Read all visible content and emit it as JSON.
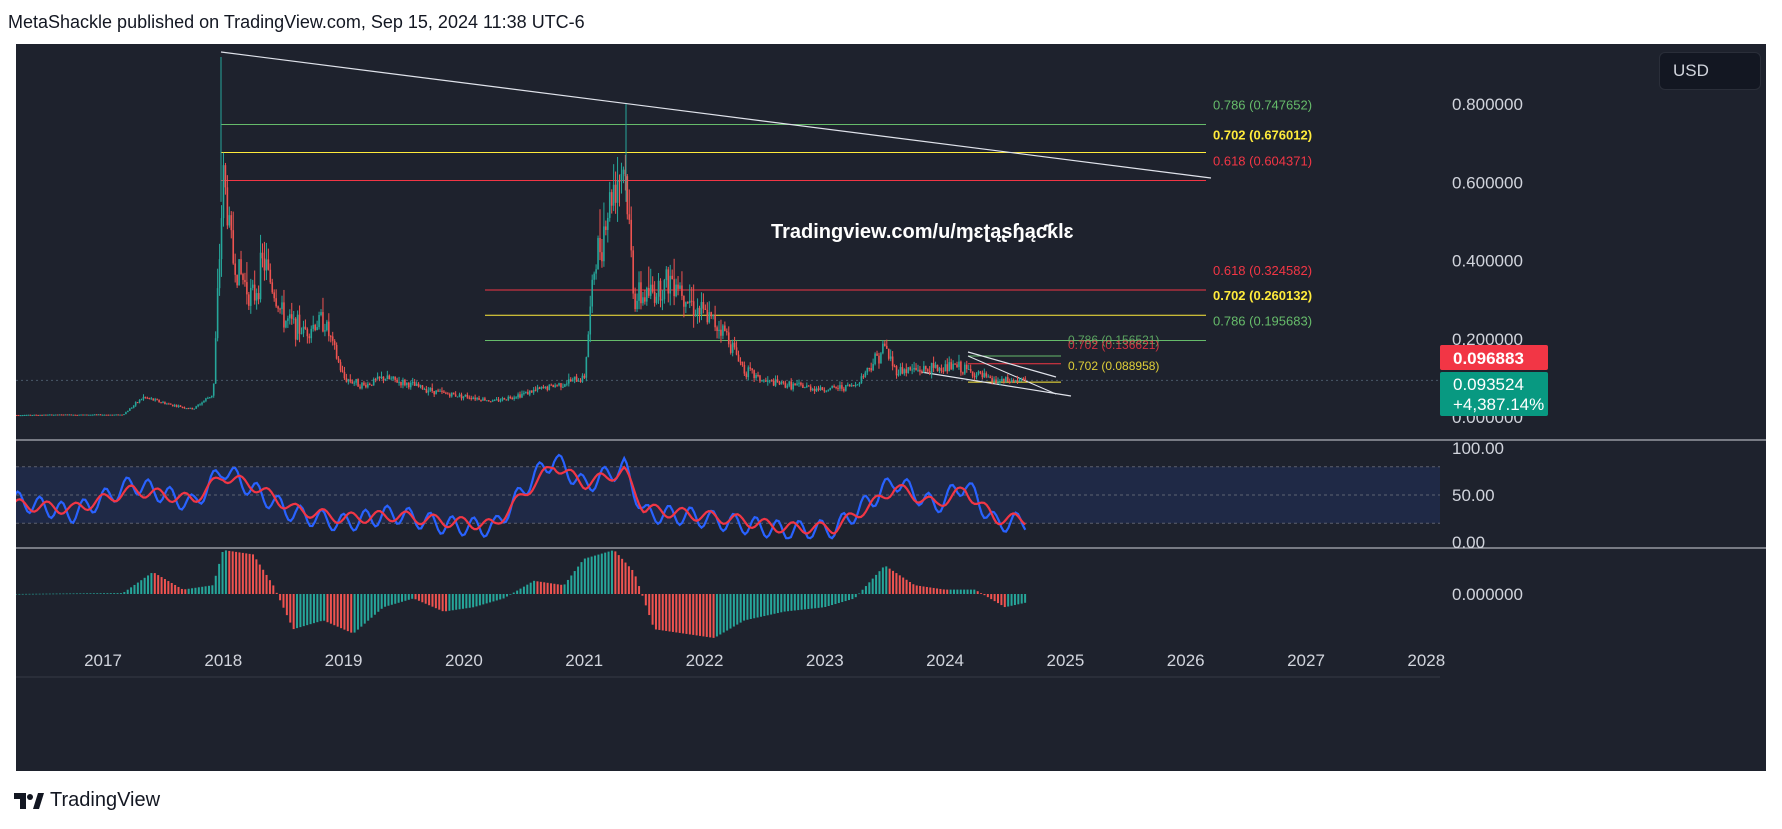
{
  "header": {
    "text": "MetaShackle published on TradingView.com, Sep 15, 2024 11:38 UTC-6"
  },
  "footer": {
    "brand": "TradingView",
    "logo_icon": "tradingview-logo-icon"
  },
  "chart": {
    "currency_label": "USD",
    "watermark": "Tradingview.com/u/ɱɛʈąʂɧąƈƙlɛ"
  },
  "colors": {
    "background": "#1e222d",
    "up": "#26a69a",
    "down": "#ef5350",
    "rsi": "#2962ff",
    "rsi_ma": "#f23645",
    "fib_green": "#66bb6a",
    "fib_yellow": "#ffeb3b",
    "fib_red": "#f23645"
  },
  "chart_data": [
    {
      "type": "candlestick",
      "title": "",
      "x_ticks": [
        "2017",
        "2018",
        "2019",
        "2020",
        "2021",
        "2022",
        "2023",
        "2024",
        "2025",
        "2026",
        "2027",
        "2028"
      ],
      "y_ticks": [
        "0.800000",
        "0.600000",
        "0.400000",
        "0.200000",
        "0.000000"
      ],
      "ylim": [
        -0.02,
        0.95
      ],
      "price_tags": [
        {
          "value": "0.096883",
          "color": "#f23645"
        },
        {
          "value": "0.093524",
          "change": "+4,387.14%",
          "color": "#089981"
        }
      ],
      "fib_levels_upper": [
        {
          "ratio": "0.786",
          "value": "0.747652",
          "label": "0.786 (0.747652)",
          "color": "#66bb6a"
        },
        {
          "ratio": "0.702",
          "value": "0.676012",
          "label": "0.702 (0.676012)",
          "color": "#ffeb3b"
        },
        {
          "ratio": "0.618",
          "value": "0.604371",
          "label": "0.618 (0.604371)",
          "color": "#f23645"
        }
      ],
      "fib_levels_middle": [
        {
          "ratio": "0.618",
          "value": "0.324582",
          "label": "0.618 (0.324582)",
          "color": "#f23645"
        },
        {
          "ratio": "0.702",
          "value": "0.260132",
          "label": "0.702 (0.260132)",
          "color": "#ffeb3b"
        },
        {
          "ratio": "0.786",
          "value": "0.195683",
          "label": "0.786 (0.195683)",
          "color": "#66bb6a"
        }
      ],
      "fib_levels_lower": [
        {
          "label": "0.786 (0.156521)",
          "color": "#66bb6a"
        },
        {
          "label": "0.702 (0.136621)",
          "color": "#f23645"
        },
        {
          "label": "0.702 (0.088958)",
          "color": "#ffeb3b"
        }
      ],
      "series": [
        {
          "name": "",
          "points": [
            [
              "2016-04",
              0.005
            ],
            [
              "2016-09",
              0.006
            ],
            [
              "2017-03",
              0.006
            ],
            [
              "2017-05",
              0.05
            ],
            [
              "2017-08",
              0.03
            ],
            [
              "2017-10",
              0.02
            ],
            [
              "2017-12",
              0.06
            ],
            [
              "2018-01",
              0.62
            ],
            [
              "2018-02",
              0.4
            ],
            [
              "2018-04",
              0.3
            ],
            [
              "2018-05",
              0.4
            ],
            [
              "2018-07",
              0.25
            ],
            [
              "2018-09",
              0.22
            ],
            [
              "2018-11",
              0.25
            ],
            [
              "2019-01",
              0.1
            ],
            [
              "2019-03",
              0.08
            ],
            [
              "2019-05",
              0.1
            ],
            [
              "2019-08",
              0.08
            ],
            [
              "2019-11",
              0.06
            ],
            [
              "2020-02",
              0.05
            ],
            [
              "2020-04",
              0.04
            ],
            [
              "2020-07",
              0.06
            ],
            [
              "2020-10",
              0.08
            ],
            [
              "2021-01",
              0.1
            ],
            [
              "2021-02",
              0.38
            ],
            [
              "2021-04",
              0.6
            ],
            [
              "2021-05",
              0.65
            ],
            [
              "2021-06",
              0.3
            ],
            [
              "2021-08",
              0.32
            ],
            [
              "2021-10",
              0.36
            ],
            [
              "2021-12",
              0.28
            ],
            [
              "2022-03",
              0.22
            ],
            [
              "2022-05",
              0.12
            ],
            [
              "2022-07",
              0.09
            ],
            [
              "2022-10",
              0.08
            ],
            [
              "2023-01",
              0.07
            ],
            [
              "2023-04",
              0.08
            ],
            [
              "2023-07",
              0.18
            ],
            [
              "2023-08",
              0.12
            ],
            [
              "2023-11",
              0.12
            ],
            [
              "2024-02",
              0.13
            ],
            [
              "2024-04",
              0.11
            ],
            [
              "2024-06",
              0.09
            ],
            [
              "2024-09",
              0.0935
            ]
          ]
        }
      ]
    },
    {
      "type": "line",
      "title": "",
      "y_ticks": [
        "100.00",
        "50.00",
        "0.00"
      ],
      "ylim": [
        0,
        100
      ],
      "band": [
        20,
        80
      ],
      "series": [
        {
          "name": "",
          "color": "#2962ff",
          "points": [
            [
              "2016-04",
              45
            ],
            [
              "2016-10",
              30
            ],
            [
              "2017-04",
              62
            ],
            [
              "2017-10",
              40
            ],
            [
              "2018-01",
              78
            ],
            [
              "2018-04",
              55
            ],
            [
              "2018-08",
              30
            ],
            [
              "2019-01",
              20
            ],
            [
              "2019-06",
              30
            ],
            [
              "2019-11",
              18
            ],
            [
              "2020-04",
              15
            ],
            [
              "2020-08",
              70
            ],
            [
              "2020-10",
              88
            ],
            [
              "2021-01",
              60
            ],
            [
              "2021-05",
              80
            ],
            [
              "2021-07",
              30
            ],
            [
              "2021-11",
              28
            ],
            [
              "2022-04",
              20
            ],
            [
              "2022-09",
              12
            ],
            [
              "2023-02",
              14
            ],
            [
              "2023-06",
              48
            ],
            [
              "2023-08",
              65
            ],
            [
              "2023-12",
              38
            ],
            [
              "2024-03",
              62
            ],
            [
              "2024-06",
              20
            ],
            [
              "2024-09",
              22
            ]
          ]
        },
        {
          "name": "",
          "color": "#f23645",
          "points": [
            [
              "2016-04",
              40
            ],
            [
              "2016-10",
              35
            ],
            [
              "2017-04",
              55
            ],
            [
              "2017-10",
              45
            ],
            [
              "2018-01",
              70
            ],
            [
              "2018-04",
              60
            ],
            [
              "2018-08",
              35
            ],
            [
              "2019-01",
              25
            ],
            [
              "2019-06",
              28
            ],
            [
              "2019-11",
              22
            ],
            [
              "2020-04",
              18
            ],
            [
              "2020-08",
              62
            ],
            [
              "2020-10",
              82
            ],
            [
              "2021-01",
              62
            ],
            [
              "2021-05",
              75
            ],
            [
              "2021-07",
              35
            ],
            [
              "2021-11",
              30
            ],
            [
              "2022-04",
              24
            ],
            [
              "2022-09",
              15
            ],
            [
              "2023-02",
              15
            ],
            [
              "2023-06",
              42
            ],
            [
              "2023-08",
              58
            ],
            [
              "2023-12",
              40
            ],
            [
              "2024-03",
              55
            ],
            [
              "2024-06",
              25
            ],
            [
              "2024-09",
              24
            ]
          ]
        }
      ]
    },
    {
      "type": "bar",
      "title": "",
      "y_ticks": [
        "0.000000"
      ],
      "ylim": [
        -1,
        1
      ],
      "series": [
        {
          "name": "",
          "points": [
            [
              "2016-04",
              0.0
            ],
            [
              "2016-09",
              0.01
            ],
            [
              "2017-03",
              0.02
            ],
            [
              "2017-06",
              0.5
            ],
            [
              "2017-09",
              0.1
            ],
            [
              "2017-12",
              0.2
            ],
            [
              "2018-01",
              1.0
            ],
            [
              "2018-04",
              0.9
            ],
            [
              "2018-06",
              0.2
            ],
            [
              "2018-08",
              -0.8
            ],
            [
              "2018-11",
              -0.6
            ],
            [
              "2019-02",
              -0.9
            ],
            [
              "2019-05",
              -0.3
            ],
            [
              "2019-08",
              -0.1
            ],
            [
              "2019-11",
              -0.4
            ],
            [
              "2020-02",
              -0.3
            ],
            [
              "2020-05",
              -0.1
            ],
            [
              "2020-08",
              0.3
            ],
            [
              "2020-11",
              0.2
            ],
            [
              "2021-01",
              0.8
            ],
            [
              "2021-04",
              1.0
            ],
            [
              "2021-06",
              0.5
            ],
            [
              "2021-08",
              -0.8
            ],
            [
              "2021-11",
              -0.9
            ],
            [
              "2022-02",
              -1.0
            ],
            [
              "2022-05",
              -0.6
            ],
            [
              "2022-09",
              -0.4
            ],
            [
              "2023-01",
              -0.3
            ],
            [
              "2023-04",
              -0.1
            ],
            [
              "2023-07",
              0.65
            ],
            [
              "2023-10",
              0.2
            ],
            [
              "2024-01",
              0.1
            ],
            [
              "2024-04",
              0.1
            ],
            [
              "2024-07",
              -0.3
            ],
            [
              "2024-09",
              -0.2
            ]
          ]
        }
      ]
    }
  ]
}
